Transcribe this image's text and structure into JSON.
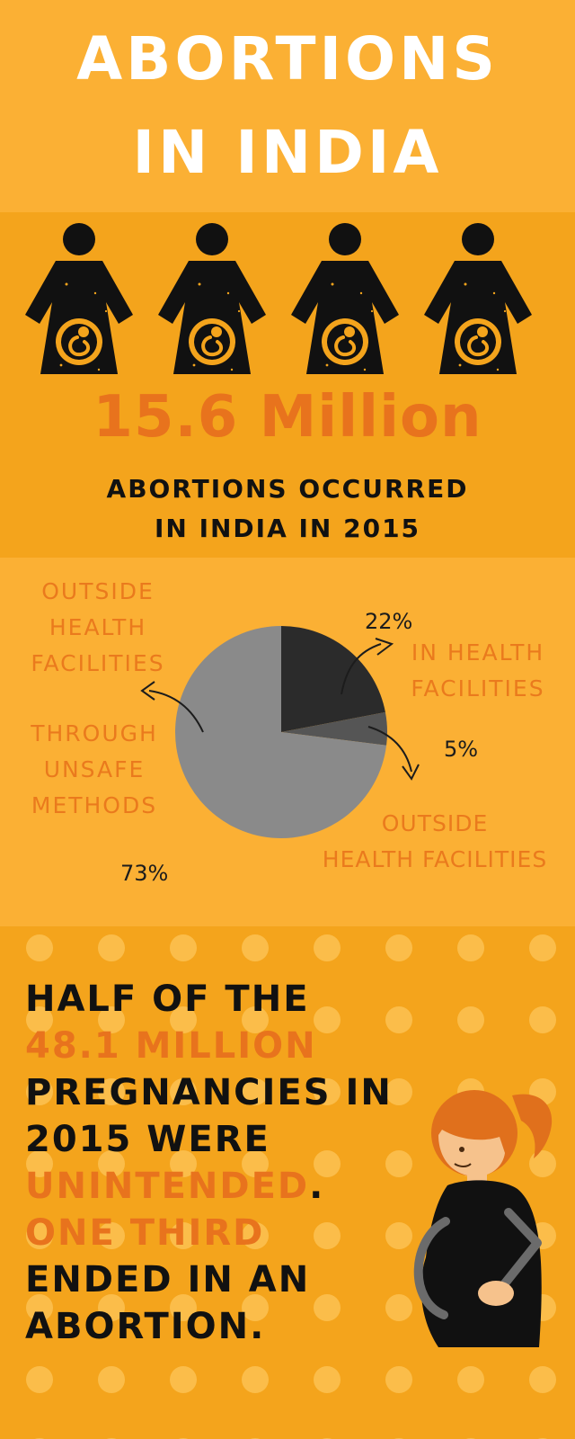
{
  "header": {
    "title_line1": "ABORTIONS",
    "title_line2": "IN INDIA"
  },
  "stat": {
    "big_number": "15.6 Million",
    "caption_line1": "ABORTIONS OCCURRED",
    "caption_line2": "IN INDIA IN 2015",
    "icon_count": 4,
    "icon_name": "pregnant-woman-icon"
  },
  "chart_data": {
    "type": "pie",
    "slices": [
      {
        "label": "IN HEALTH FACILITIES",
        "value": 22,
        "display": "22%",
        "color": "#2b2b2b"
      },
      {
        "label": "OUTSIDE HEALTH FACILITIES",
        "value": 5,
        "display": "5%",
        "color": "#555555"
      },
      {
        "label": "OUTSIDE HEALTH FACILITIES THROUGH UNSAFE METHODS",
        "value": 73,
        "display": "73%",
        "color": "#8a8a8a"
      }
    ],
    "labels": {
      "in_health": [
        "IN HEALTH",
        "FACILITIES"
      ],
      "outside_health": [
        "OUTSIDE",
        "HEALTH FACILITIES"
      ],
      "unsafe_top": [
        "OUTSIDE",
        "HEALTH",
        "FACILITIES"
      ],
      "unsafe_bottom": [
        "THROUGH",
        "UNSAFE",
        "METHODS"
      ]
    }
  },
  "message": {
    "lines": [
      {
        "text": "HALF OF THE",
        "accent": false
      },
      {
        "text": "48.1 MILLION",
        "accent": true
      },
      {
        "text": "PREGNANCIES IN",
        "accent": false
      },
      {
        "text": "2015 WERE",
        "accent": false
      },
      {
        "text": "UNINTENDED",
        "accent": true,
        "suffix": "."
      },
      {
        "text": "ONE THIRD",
        "accent": true
      },
      {
        "text": "ENDED IN AN",
        "accent": false
      },
      {
        "text": "ABORTION.",
        "accent": false
      }
    ],
    "illustration": "pregnant-woman-illustration"
  },
  "colors": {
    "bg_light": "#fbb034",
    "bg_dark": "#f4a41c",
    "accent": "#e8731d",
    "ink": "#111111"
  }
}
